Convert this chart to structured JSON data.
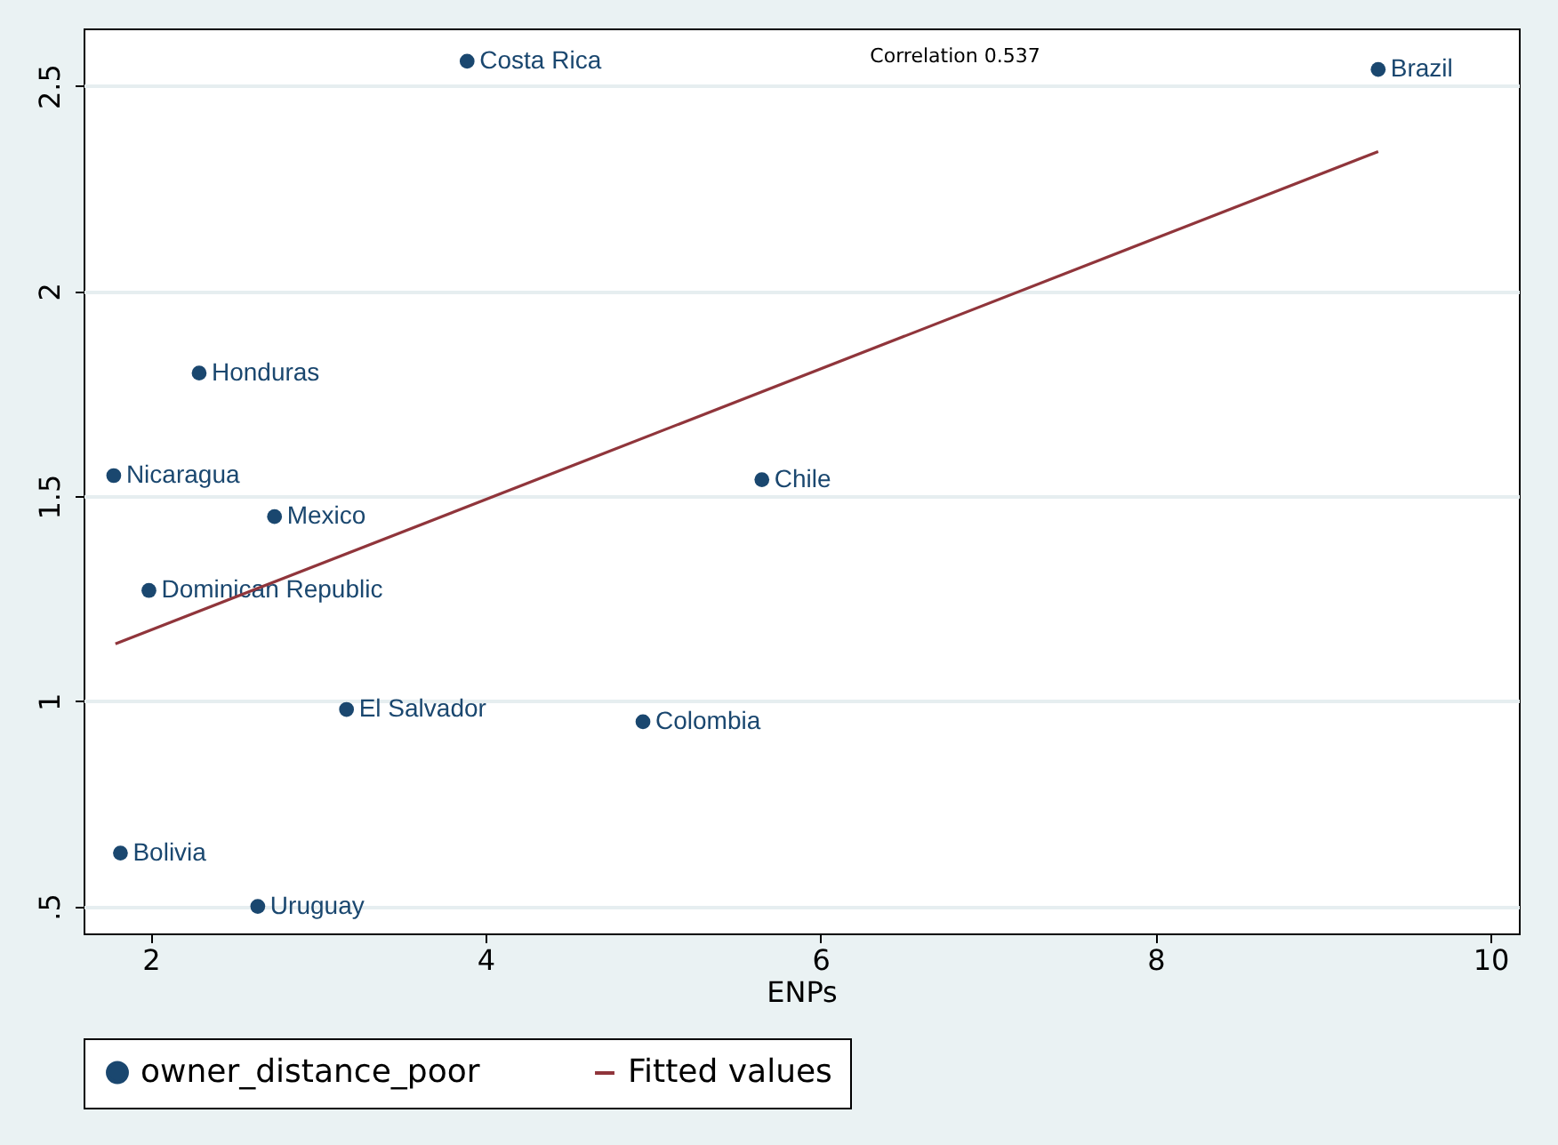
{
  "chart_data": {
    "type": "scatter",
    "xlabel": "ENPs",
    "annotations": [
      "Correlation 0.537"
    ],
    "xlim": [
      1.6,
      10.17
    ],
    "ylim": [
      0.434,
      2.64
    ],
    "xticks": [
      2,
      4,
      6,
      8,
      10
    ],
    "yticks": [
      {
        "value": 0.5,
        "label": ".5"
      },
      1,
      1.5,
      2,
      2.5
    ],
    "grid": "y",
    "legend": "bottom",
    "series": [
      {
        "name": "owner_distance_poor",
        "marker": "circle",
        "color": "#1a476f",
        "x": [
          3.89,
          9.33,
          2.29,
          1.78,
          5.65,
          2.74,
          1.99,
          3.17,
          4.94,
          1.82,
          2.64
        ],
        "values": [
          2.56,
          2.54,
          1.8,
          1.55,
          1.54,
          1.45,
          1.27,
          0.98,
          0.95,
          0.63,
          0.5
        ],
        "value_labels": [
          "Costa Rica",
          "Brazil",
          "Honduras",
          "Nicaragua",
          "Chile",
          "Mexico",
          "Dominican Republic",
          "El Salvador",
          "Colombia",
          "Bolivia",
          "Uruguay"
        ]
      },
      {
        "name": "Fitted values",
        "type": "line",
        "marker": "none",
        "line_style": "solid",
        "color": "#90353b",
        "x": [
          1.79,
          9.33
        ],
        "values": [
          1.14,
          2.34
        ]
      }
    ]
  }
}
